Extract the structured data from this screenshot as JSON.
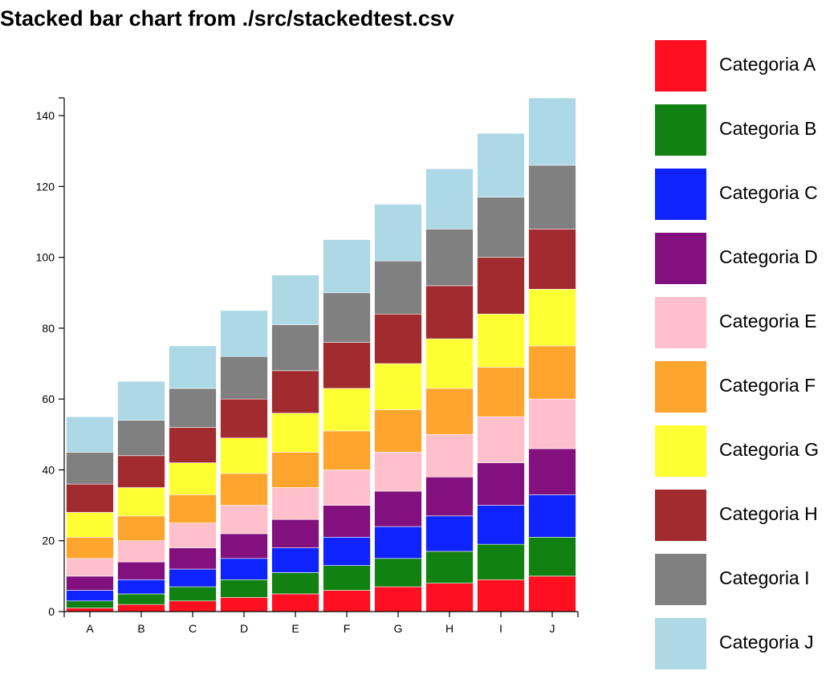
{
  "chart_data": {
    "type": "bar",
    "stacked": true,
    "title": "Stacked bar chart from ./src/stackedtest.csv",
    "categories": [
      "A",
      "B",
      "C",
      "D",
      "E",
      "F",
      "G",
      "H",
      "I",
      "J"
    ],
    "series": [
      {
        "name": "Categoria A",
        "color": "#ff0f1f",
        "values": [
          1,
          2,
          3,
          4,
          5,
          6,
          7,
          8,
          9,
          10
        ]
      },
      {
        "name": "Categoria B",
        "color": "#118211",
        "values": [
          2,
          3,
          4,
          5,
          6,
          7,
          8,
          9,
          10,
          11
        ]
      },
      {
        "name": "Categoria C",
        "color": "#0f23ff",
        "values": [
          3,
          4,
          5,
          6,
          7,
          8,
          9,
          10,
          11,
          12
        ]
      },
      {
        "name": "Categoria D",
        "color": "#82117f",
        "values": [
          4,
          5,
          6,
          7,
          8,
          9,
          10,
          11,
          12,
          13
        ]
      },
      {
        "name": "Categoria E",
        "color": "#ffc0cb",
        "values": [
          5,
          6,
          7,
          8,
          9,
          10,
          11,
          12,
          13,
          14
        ]
      },
      {
        "name": "Categoria F",
        "color": "#ffa42d",
        "values": [
          6,
          7,
          8,
          9,
          10,
          11,
          12,
          13,
          14,
          15
        ]
      },
      {
        "name": "Categoria G",
        "color": "#ffff33",
        "values": [
          7,
          8,
          9,
          10,
          11,
          12,
          13,
          14,
          15,
          16
        ]
      },
      {
        "name": "Categoria H",
        "color": "#a22b2f",
        "values": [
          8,
          9,
          10,
          11,
          12,
          13,
          14,
          15,
          16,
          17
        ]
      },
      {
        "name": "Categoria I",
        "color": "#808080",
        "values": [
          9,
          10,
          11,
          12,
          13,
          14,
          15,
          16,
          17,
          18
        ]
      },
      {
        "name": "Categoria J",
        "color": "#add8e6",
        "values": [
          10,
          11,
          12,
          13,
          14,
          15,
          16,
          17,
          18,
          19
        ]
      }
    ],
    "ylim": [
      0,
      145
    ],
    "yticks": [
      0,
      20,
      40,
      60,
      80,
      100,
      120,
      140
    ],
    "xlabel": "",
    "ylabel": "",
    "grid": false,
    "legend": "right"
  }
}
